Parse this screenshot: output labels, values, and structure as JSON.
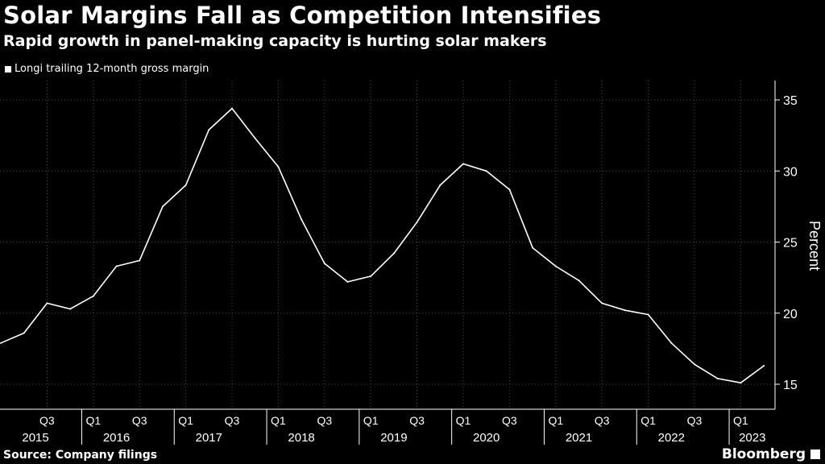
{
  "header": {
    "title": "Solar Margins Fall as Competition Intensifies",
    "subtitle": "Rapid growth in panel-making capacity is hurting solar makers"
  },
  "footer": {
    "source": "Source: Company filings",
    "brand": "Bloomberg"
  },
  "colors": {
    "background": "#000000",
    "line": "#ffffff",
    "grid": "#4a4a4a"
  },
  "chart_data": {
    "type": "line",
    "title": "Solar Margins Fall as Competition Intensifies",
    "subtitle": "Rapid growth in panel-making capacity is hurting solar makers",
    "ylabel": "Percent",
    "xlabel": "",
    "ylim": [
      13,
      36
    ],
    "yticks": [
      15,
      20,
      25,
      30,
      35
    ],
    "legend": {
      "entries": [
        "Longi trailing 12-month gross margin"
      ],
      "placement": "top-left"
    },
    "grid": "vertical-dotted",
    "x_quarter_ticks": [
      {
        "index": 2,
        "label": "Q3"
      },
      {
        "index": 4,
        "label": "Q1"
      },
      {
        "index": 6,
        "label": "Q3"
      },
      {
        "index": 8,
        "label": "Q1"
      },
      {
        "index": 10,
        "label": "Q3"
      },
      {
        "index": 12,
        "label": "Q1"
      },
      {
        "index": 14,
        "label": "Q3"
      },
      {
        "index": 16,
        "label": "Q1"
      },
      {
        "index": 18,
        "label": "Q3"
      },
      {
        "index": 20,
        "label": "Q1"
      },
      {
        "index": 22,
        "label": "Q3"
      },
      {
        "index": 24,
        "label": "Q1"
      },
      {
        "index": 26,
        "label": "Q3"
      },
      {
        "index": 28,
        "label": "Q1"
      },
      {
        "index": 30,
        "label": "Q3"
      },
      {
        "index": 32,
        "label": "Q1"
      }
    ],
    "years": [
      {
        "label": "2015",
        "center_index": 1.5
      },
      {
        "label": "2016",
        "center_index": 5
      },
      {
        "label": "2017",
        "center_index": 9
      },
      {
        "label": "2018",
        "center_index": 13
      },
      {
        "label": "2019",
        "center_index": 17
      },
      {
        "label": "2020",
        "center_index": 21
      },
      {
        "label": "2021",
        "center_index": 25
      },
      {
        "label": "2022",
        "center_index": 29
      },
      {
        "label": "2023",
        "center_index": 32.5
      }
    ],
    "year_separators": [
      3,
      7,
      11,
      15,
      19,
      23,
      27,
      31
    ],
    "series": [
      {
        "name": "Longi trailing 12-month gross margin",
        "x_index": [
          0,
          1,
          2,
          3,
          4,
          5,
          6,
          7,
          8,
          9,
          10,
          11,
          12,
          13,
          14,
          15,
          16,
          17,
          18,
          19,
          20,
          21,
          22,
          23,
          24,
          25,
          26,
          27,
          28,
          29,
          30,
          31,
          32,
          33
        ],
        "values": [
          17.9,
          18.6,
          20.7,
          20.3,
          21.2,
          23.3,
          23.7,
          27.5,
          29.0,
          32.9,
          34.4,
          32.3,
          30.3,
          26.6,
          23.5,
          22.2,
          22.6,
          24.2,
          26.4,
          29.0,
          30.5,
          30.0,
          28.7,
          24.6,
          23.3,
          22.3,
          20.7,
          20.2,
          19.9,
          17.9,
          16.4,
          15.4,
          15.1,
          16.3
        ]
      }
    ]
  }
}
